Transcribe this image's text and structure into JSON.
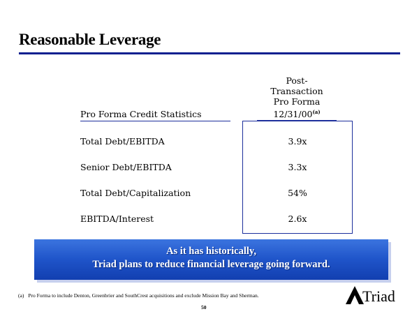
{
  "title": "Reasonable Leverage",
  "table": {
    "left_header": "Pro Forma Credit Statistics",
    "right_header_lines": [
      "Post-",
      "Transaction",
      "Pro Forma",
      "12/31/00"
    ],
    "right_header_superscript": "(a)",
    "rows": [
      {
        "label": "Total Debt/EBITDA",
        "value": "3.9x"
      },
      {
        "label": "Senior Debt/EBITDA",
        "value": "3.3x"
      },
      {
        "label": "Total Debt/Capitalization",
        "value": "54%"
      },
      {
        "label": "EBITDA/Interest",
        "value": "2.6x"
      }
    ]
  },
  "banner": {
    "line1": "As it has historically,",
    "line2": "Triad plans to reduce financial leverage going forward."
  },
  "footnote": {
    "marker": "(a)",
    "text": "Pro Forma to include Denton, Greenbrier and SouthCrest acquisitions and exclude Mission Bay and Sherman."
  },
  "page_number": "50",
  "logo": {
    "text": "Triad",
    "icon": "triangle-logo-icon"
  },
  "colors": {
    "accent": "#0a1f8f",
    "banner": "#1f54c9",
    "banner_text": "#ffffff"
  }
}
